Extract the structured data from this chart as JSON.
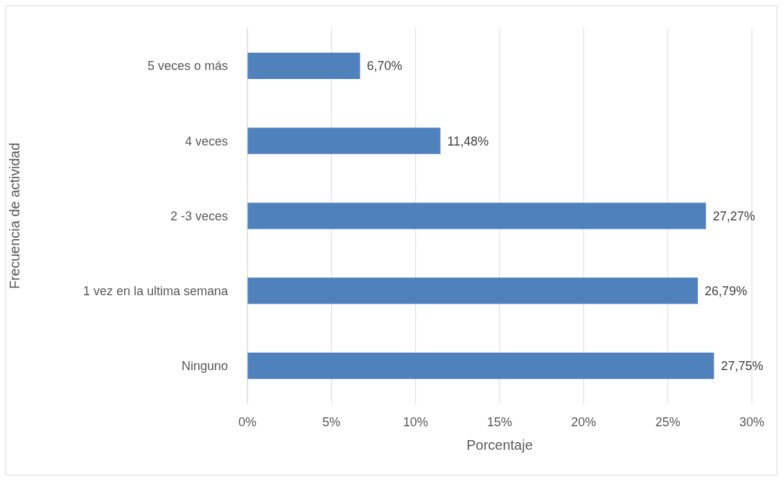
{
  "chart_data": {
    "type": "bar",
    "orientation": "horizontal",
    "xlabel": "Porcentaje",
    "ylabel": "Frecuencia de actividad",
    "categories": [
      "5 veces o más",
      "4 veces",
      "2 -3 veces",
      "1 vez en la ultima semana",
      "Ninguno"
    ],
    "values": [
      6.7,
      11.48,
      27.27,
      26.79,
      27.75
    ],
    "value_labels": [
      "6,70%",
      "11,48%",
      "27,27%",
      "26,79%",
      "27,75%"
    ],
    "color": "#4f81bd",
    "xlim": [
      0,
      30
    ],
    "xticks": [
      {
        "value": 0,
        "label": "0%"
      },
      {
        "value": 5,
        "label": "5%"
      },
      {
        "value": 10,
        "label": "10%"
      },
      {
        "value": 15,
        "label": "15%"
      },
      {
        "value": 20,
        "label": "20%"
      },
      {
        "value": 25,
        "label": "25%"
      },
      {
        "value": 30,
        "label": "30%"
      }
    ],
    "grid": "x",
    "legend": false
  }
}
